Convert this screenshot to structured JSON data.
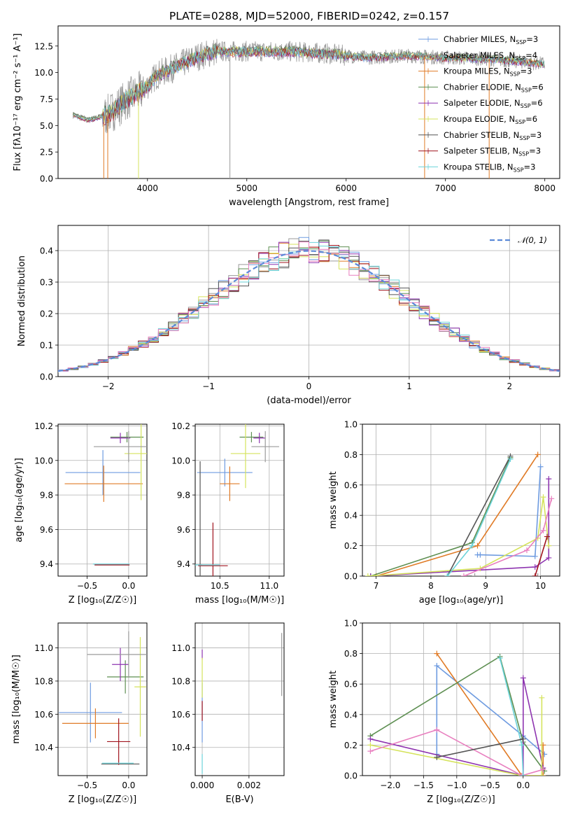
{
  "title": "PLATE=0288, MJD=52000, FIBERID=0242, z=0.157",
  "colors": {
    "Chabrier MILES": "#6e9be0",
    "Salpeter MILES": "#9a9a9a",
    "Kroupa MILES": "#e07b27",
    "Chabrier ELODIE": "#5e8f52",
    "Salpeter ELODIE": "#8e34b0",
    "Kroupa ELODIE": "#d5e35c",
    "Chabrier STELIB": "#555555",
    "Salpeter STELIB": "#a0141e",
    "Kroupa STELIB": "#6cd3d9"
  },
  "chart_data": [
    {
      "id": "spectrum",
      "type": "line",
      "xlabel": "wavelength [Angstrom, rest frame]",
      "ylabel": "Flux [fλ10⁻¹⁷ erg cm⁻² s⁻¹ A⁻¹]",
      "xlim": [
        3100,
        8150
      ],
      "ylim": [
        0,
        14.4
      ],
      "xticks": [
        4000,
        5000,
        6000,
        7000,
        8000
      ],
      "yticks": [
        0.0,
        2.5,
        5.0,
        7.5,
        10.0,
        12.5
      ],
      "legend_position": "right",
      "legend": [
        {
          "model": "Chabrier MILES",
          "label": "Chabrier MILES, N",
          "sub": "SSP",
          "eq": "=3"
        },
        {
          "model": "Salpeter MILES",
          "label": "Salpeter MILES, N",
          "sub": "SSP",
          "eq": "=4"
        },
        {
          "model": "Kroupa MILES",
          "label": "Kroupa MILES, N",
          "sub": "SSP",
          "eq": "=3"
        },
        {
          "model": "Chabrier ELODIE",
          "label": "Chabrier ELODIE, N",
          "sub": "SSP",
          "eq": "=6"
        },
        {
          "model": "Salpeter ELODIE",
          "label": "Salpeter ELODIE, N",
          "sub": "SSP",
          "eq": "=6"
        },
        {
          "model": "Kroupa ELODIE",
          "label": "Kroupa ELODIE, N",
          "sub": "SSP",
          "eq": "=6"
        },
        {
          "model": "Chabrier STELIB",
          "label": "Chabrier STELIB, N",
          "sub": "SSP",
          "eq": "=3"
        },
        {
          "model": "Salpeter STELIB",
          "label": "Salpeter STELIB, N",
          "sub": "SSP",
          "eq": "=3"
        },
        {
          "model": "Kroupa STELIB",
          "label": "Kroupa STELIB, N",
          "sub": "SSP",
          "eq": "=3"
        }
      ],
      "continuum": {
        "x": [
          3250,
          3400,
          3600,
          3800,
          3950,
          4100,
          4300,
          4500,
          4700,
          5000,
          5400,
          5800,
          6200,
          6600,
          7000,
          7400,
          7800,
          8000
        ],
        "y": [
          6.0,
          5.5,
          6.0,
          7.5,
          8.3,
          9.8,
          10.6,
          11.5,
          12.0,
          12.0,
          12.0,
          11.8,
          11.4,
          11.6,
          11.4,
          11.3,
          11.0,
          10.8
        ]
      },
      "dropouts": [
        3560,
        3600,
        3910,
        4830,
        6790,
        7440
      ]
    },
    {
      "id": "residuals",
      "type": "step",
      "xlabel": "(data-model)/error",
      "ylabel": "Normed distribution",
      "xlim": [
        -2.5,
        2.5
      ],
      "ylim": [
        0,
        0.48
      ],
      "xticks": [
        -2,
        -1,
        0,
        1,
        2
      ],
      "yticks": [
        0.0,
        0.1,
        0.2,
        0.3,
        0.4
      ],
      "reference_label": "𝒩(0, 1)",
      "reference_color": "#5b8ad8",
      "bin_width": 0.1
    },
    {
      "id": "age-vs-Z",
      "type": "errorbar",
      "xlabel": "Z [log₁₀(Z/Z☉)]",
      "ylabel": "age  [log₁₀(age/yr)]",
      "xlim": [
        -0.85,
        0.22
      ],
      "ylim": [
        9.33,
        10.21
      ],
      "xticks": [
        -0.5,
        0.0
      ],
      "yticks": [
        9.4,
        9.6,
        9.8,
        10.0,
        10.2
      ],
      "points": [
        {
          "model": "Chabrier MILES",
          "x": -0.31,
          "y": 9.93,
          "xerr": 0.45,
          "yerr": 0.13
        },
        {
          "model": "Kroupa MILES",
          "x": -0.3,
          "y": 9.865,
          "xerr": 0.47,
          "yerr": 0.105
        },
        {
          "model": "Chabrier ELODIE",
          "x": -0.02,
          "y": 10.135,
          "xerr": 0.2,
          "yerr": 0.03
        },
        {
          "model": "Salpeter ELODIE",
          "x": -0.1,
          "y": 10.13,
          "xerr": 0.12,
          "yerr": 0.03
        },
        {
          "model": "Kroupa ELODIE",
          "x": 0.15,
          "y": 10.04,
          "xerr": 0.2,
          "yerr": 0.27
        },
        {
          "model": "Salpeter MILES",
          "x": 0.0,
          "y": 10.08,
          "xerr": 0.42,
          "yerr": 0.09
        },
        {
          "model": "Chabrier STELIB",
          "x": -0.2,
          "y": 9.395,
          "xerr": 0.21,
          "yerr": 0.0
        },
        {
          "model": "Salpeter STELIB",
          "x": -0.2,
          "y": 9.395,
          "xerr": 0.21,
          "yerr": 0.0
        },
        {
          "model": "Kroupa STELIB",
          "x": -0.21,
          "y": 9.4,
          "xerr": 0.22,
          "yerr": 0.0
        }
      ]
    },
    {
      "id": "age-vs-mass",
      "type": "errorbar",
      "xlabel": "mass [log₁₀(M/M☉)]",
      "ylabel": "",
      "xlim": [
        10.25,
        11.15
      ],
      "ylim": [
        9.33,
        10.21
      ],
      "xticks": [
        10.5,
        11.0
      ],
      "yticks": [
        9.4,
        9.6,
        9.8,
        10.0,
        10.2
      ],
      "points": [
        {
          "model": "Chabrier MILES",
          "x": 10.55,
          "y": 9.93,
          "xerr": 0.28,
          "yerr": 0.08
        },
        {
          "model": "Kroupa MILES",
          "x": 10.6,
          "y": 9.865,
          "xerr": 0.1,
          "yerr": 0.1
        },
        {
          "model": "Chabrier ELODIE",
          "x": 10.82,
          "y": 10.135,
          "xerr": 0.12,
          "yerr": 0.03
        },
        {
          "model": "Salpeter ELODIE",
          "x": 10.9,
          "y": 10.13,
          "xerr": 0.06,
          "yerr": 0.03
        },
        {
          "model": "Kroupa ELODIE",
          "x": 10.76,
          "y": 10.04,
          "xerr": 0.15,
          "yerr": 0.2
        },
        {
          "model": "Salpeter MILES",
          "x": 10.96,
          "y": 10.08,
          "xerr": 0.14,
          "yerr": 0.09
        },
        {
          "model": "Chabrier STELIB",
          "x": 10.3,
          "y": 9.395,
          "xerr": 0.02,
          "yerr": 0.6
        },
        {
          "model": "Salpeter STELIB",
          "x": 10.43,
          "y": 9.39,
          "xerr": 0.15,
          "yerr": 0.25
        },
        {
          "model": "Kroupa STELIB",
          "x": 10.3,
          "y": 9.395,
          "xerr": 0.2,
          "yerr": 0.0
        }
      ]
    },
    {
      "id": "massweight-vs-age",
      "type": "line",
      "xlabel": "age  [log₁₀(age/yr)]",
      "ylabel": "mass weight",
      "xlim": [
        6.75,
        10.35
      ],
      "ylim": [
        0,
        1.0
      ],
      "xticks": [
        7,
        8,
        9,
        10
      ],
      "yticks": [
        0.0,
        0.2,
        0.4,
        0.6,
        0.8,
        1.0
      ],
      "series": [
        {
          "model": "Chabrier MILES",
          "x": [
            8.85,
            8.9,
            9.9,
            10.0
          ],
          "y": [
            0.14,
            0.14,
            0.13,
            0.72
          ]
        },
        {
          "model": "Kroupa MILES",
          "x": [
            7.0,
            8.85,
            9.95
          ],
          "y": [
            0.0,
            0.2,
            0.8
          ]
        },
        {
          "model": "Salpeter MILES",
          "x": [
            8.8,
            9.95
          ],
          "y": [
            0.0,
            0.0
          ]
        },
        {
          "model": "Chabrier ELODIE",
          "x": [
            6.9,
            8.75,
            9.45
          ],
          "y": [
            0.0,
            0.22,
            0.78
          ]
        },
        {
          "model": "Salpeter ELODIE",
          "x": [
            6.9,
            9.9,
            10.15,
            10.15
          ],
          "y": [
            0.0,
            0.06,
            0.12,
            0.64
          ]
        },
        {
          "model": "Kroupa ELODIE",
          "x": [
            6.85,
            8.9,
            9.95,
            10.05,
            10.15
          ],
          "y": [
            0.0,
            0.05,
            0.25,
            0.52,
            0.2
          ]
        },
        {
          "model": "Chabrier STELIB",
          "x": [
            8.3,
            9.45
          ],
          "y": [
            0.0,
            0.79
          ]
        },
        {
          "model": "Salpeter STELIB",
          "x": [
            9.9,
            10.12
          ],
          "y": [
            0.0,
            0.26
          ]
        },
        {
          "model": "Kroupa STELIB",
          "x": [
            8.3,
            8.75,
            9.45
          ],
          "y": [
            0.0,
            0.2,
            0.77
          ]
        },
        {
          "model": "Salpeter MILES pink",
          "x": [
            8.6,
            9.75,
            10.05,
            10.2
          ],
          "y": [
            0.0,
            0.17,
            0.3,
            0.51
          ]
        }
      ]
    },
    {
      "id": "mass-vs-Z",
      "type": "errorbar",
      "xlabel": "Z [log₁₀(Z/Z☉)]",
      "ylabel": "mass [log₁₀(M/M☉)]",
      "xlim": [
        -0.85,
        0.22
      ],
      "ylim": [
        10.23,
        11.15
      ],
      "xticks": [
        -0.5,
        0.0
      ],
      "yticks": [
        10.4,
        10.6,
        10.8,
        11.0
      ],
      "points": [
        {
          "model": "Chabrier MILES",
          "x": -0.46,
          "y": 10.61,
          "xerr": 0.38,
          "yerr": 0.18
        },
        {
          "model": "Kroupa MILES",
          "x": -0.4,
          "y": 10.545,
          "xerr": 0.4,
          "yerr": 0.09
        },
        {
          "model": "Chabrier ELODIE",
          "x": -0.04,
          "y": 10.825,
          "xerr": 0.22,
          "yerr": 0.1
        },
        {
          "model": "Salpeter ELODIE",
          "x": -0.1,
          "y": 10.9,
          "xerr": 0.1,
          "yerr": 0.1
        },
        {
          "model": "Kroupa ELODIE",
          "x": 0.14,
          "y": 10.765,
          "xerr": 0.07,
          "yerr": 0.3
        },
        {
          "model": "Salpeter MILES",
          "x": 0.0,
          "y": 10.96,
          "xerr": 0.5,
          "yerr": 0.14
        },
        {
          "model": "Chabrier STELIB",
          "x": -0.1,
          "y": 10.3,
          "xerr": 0.23,
          "yerr": 0.0
        },
        {
          "model": "Salpeter STELIB",
          "x": -0.12,
          "y": 10.435,
          "xerr": 0.14,
          "yerr": 0.14
        },
        {
          "model": "Kroupa STELIB",
          "x": -0.13,
          "y": 10.305,
          "xerr": 0.19,
          "yerr": 0.0
        }
      ]
    },
    {
      "id": "mass-vs-EBV",
      "type": "errorbar",
      "xlabel": "E(B-V)",
      "ylabel": "",
      "xlim": [
        -0.0003,
        0.0035
      ],
      "ylim": [
        10.23,
        11.15
      ],
      "xticks": [
        0.0,
        0.002
      ],
      "xticklabels": [
        "0.000",
        "0.002"
      ],
      "yticks": [
        10.4,
        10.6,
        10.8,
        11.0
      ],
      "points": [
        {
          "model": "Salpeter MILES",
          "x": 0.0034,
          "y": 10.9,
          "xerr": 0.0,
          "yerr": 0.19
        },
        {
          "model": "Chabrier MILES",
          "x": 0.0,
          "y": 10.61,
          "xerr": 0.0,
          "yerr": 0.18
        },
        {
          "model": "Salpeter ELODIE",
          "x": 0.0,
          "y": 10.96,
          "xerr": 0.0,
          "yerr": 0.03
        },
        {
          "model": "Kroupa ELODIE",
          "x": 0.0,
          "y": 10.82,
          "xerr": 0.0,
          "yerr": 0.12
        },
        {
          "model": "Salpeter STELIB",
          "x": 0.0,
          "y": 10.62,
          "xerr": 0.0,
          "yerr": 0.06
        },
        {
          "model": "Kroupa STELIB",
          "x": 0.0,
          "y": 10.3,
          "xerr": 0.0,
          "yerr": 0.06
        }
      ]
    },
    {
      "id": "massweight-vs-Z",
      "type": "line",
      "xlabel": "Z [log₁₀(Z/Z☉)]",
      "ylabel": "mass weight",
      "xlim": [
        -2.42,
        0.55
      ],
      "ylim": [
        0,
        1.0
      ],
      "xticks": [
        -2.0,
        -1.5,
        -1.0,
        -0.5,
        0.0
      ],
      "yticks": [
        0.0,
        0.2,
        0.4,
        0.6,
        0.8,
        1.0
      ],
      "series": [
        {
          "model": "Chabrier MILES",
          "x": [
            -1.3,
            -1.3,
            0.0,
            0.32
          ],
          "y": [
            0.14,
            0.72,
            0.26,
            0.14
          ]
        },
        {
          "model": "Kroupa MILES",
          "x": [
            -1.3,
            -0.02,
            0.3,
            0.3
          ],
          "y": [
            0.8,
            0.0,
            0.0,
            0.2
          ]
        },
        {
          "model": "Chabrier ELODIE",
          "x": [
            -2.3,
            -0.35,
            0.0,
            0.32
          ],
          "y": [
            0.26,
            0.78,
            0.22,
            0.03
          ]
        },
        {
          "model": "Salpeter ELODIE",
          "x": [
            -2.3,
            0.0,
            0.0,
            0.3
          ],
          "y": [
            0.24,
            0.0,
            0.64,
            0.05
          ]
        },
        {
          "model": "Kroupa ELODIE",
          "x": [
            -2.3,
            -0.02,
            0.28,
            0.28
          ],
          "y": [
            0.2,
            0.0,
            0.0,
            0.51
          ]
        },
        {
          "model": "Salpeter MILES pink",
          "x": [
            -2.3,
            -1.3,
            -0.02,
            0.3
          ],
          "y": [
            0.16,
            0.3,
            0.0,
            0.04
          ]
        },
        {
          "model": "Kroupa STELIB",
          "x": [
            -0.35,
            -0.02,
            0.0
          ],
          "y": [
            0.77,
            0.2,
            0.0
          ]
        },
        {
          "model": "Chabrier STELIB",
          "x": [
            -1.3,
            0.0
          ],
          "y": [
            0.12,
            0.24
          ]
        }
      ]
    }
  ]
}
